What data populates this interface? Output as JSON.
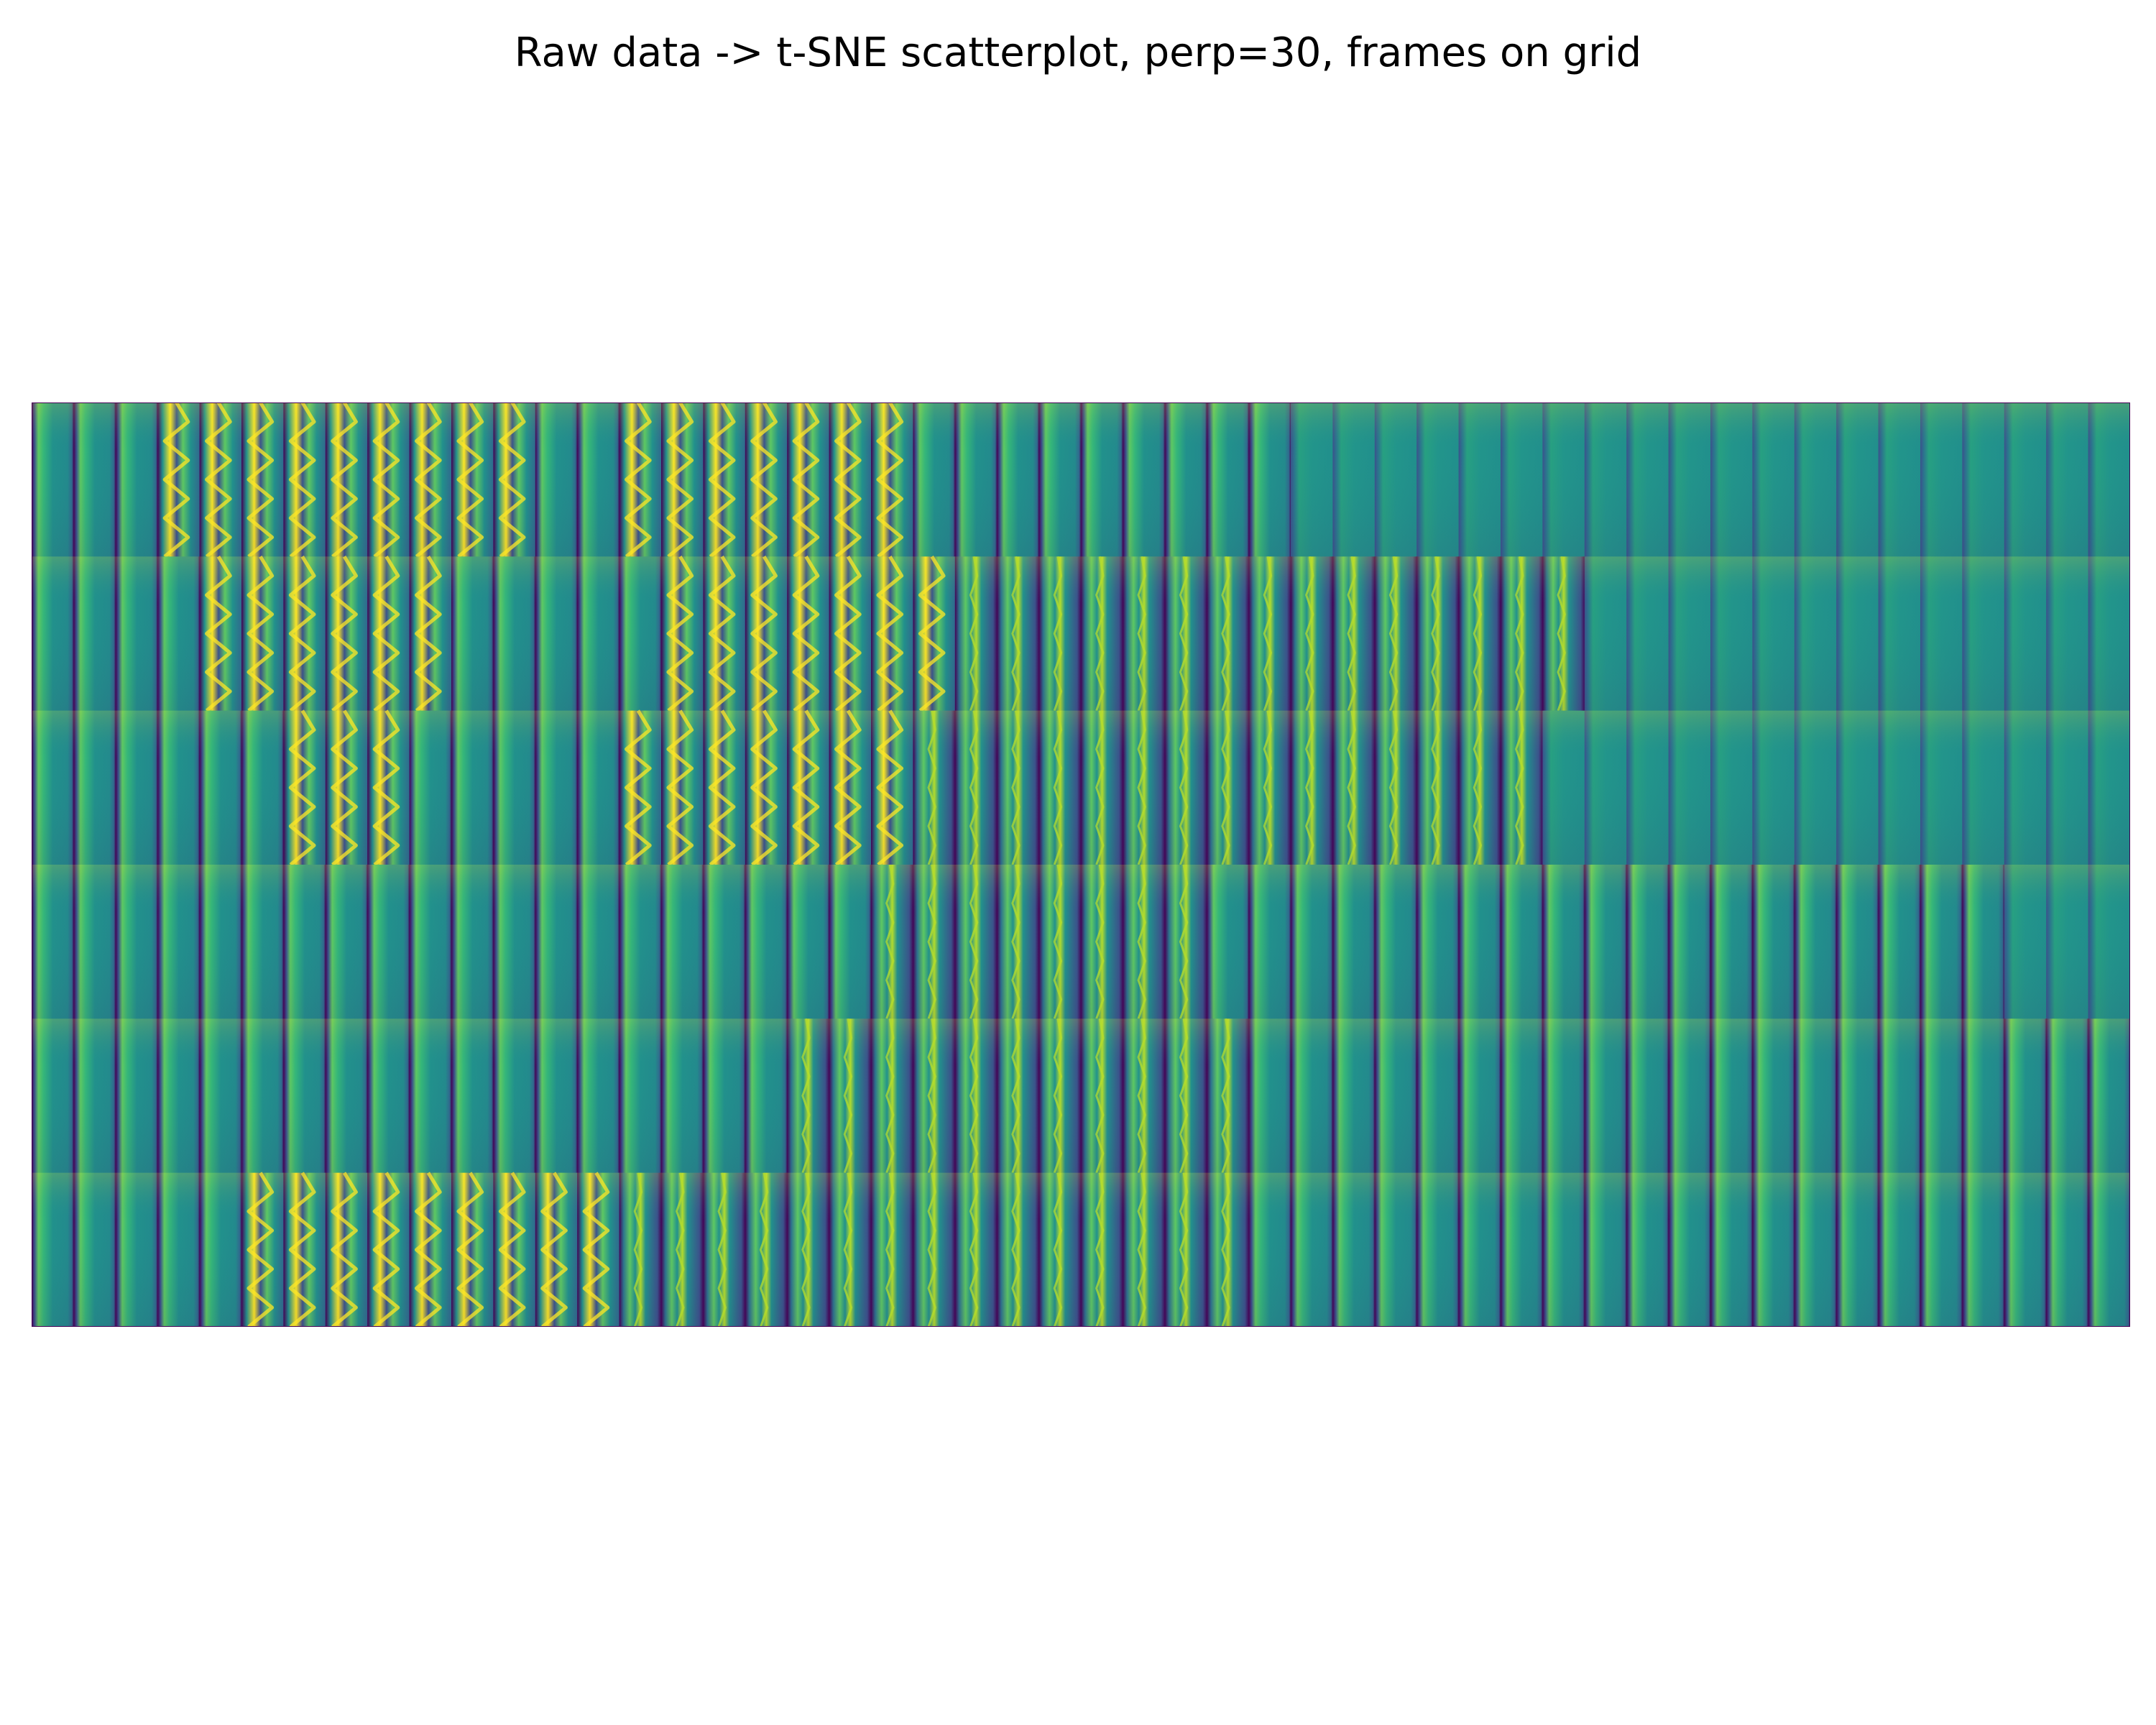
{
  "title": "Raw data -> t-SNE scatterplot, perp=30, frames on grid",
  "grid": {
    "rows": 6,
    "columns": 50,
    "colormap": [
      "#440154",
      "#3b528b",
      "#21918c",
      "#5ec962",
      "#fde725"
    ],
    "background_color": "#21918c",
    "stripe_color": "#440154",
    "axes": "off"
  }
}
